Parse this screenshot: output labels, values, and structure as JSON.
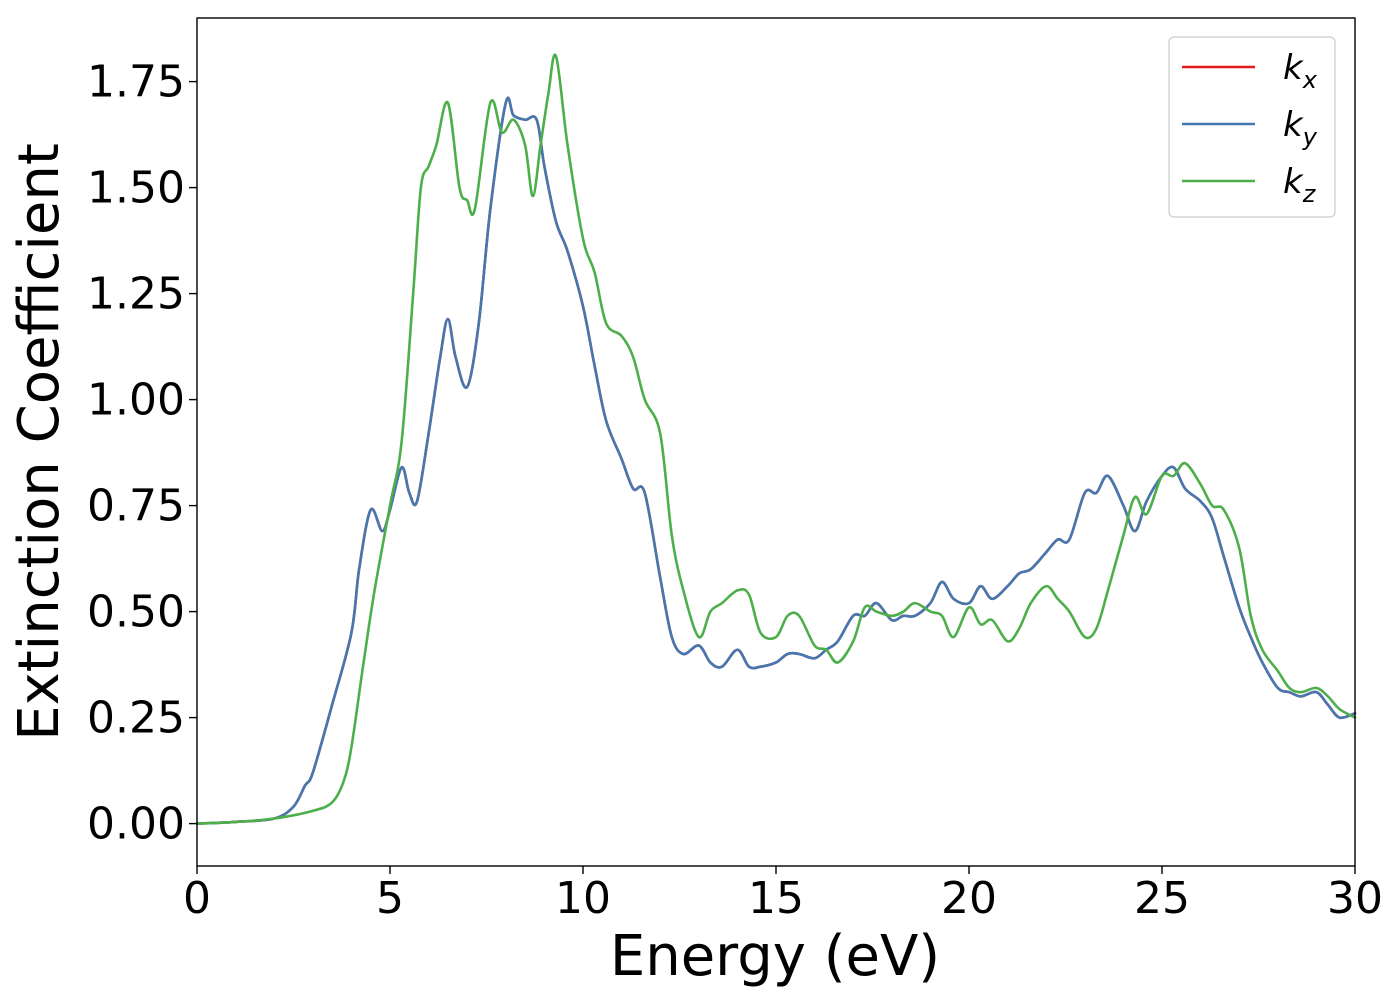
{
  "chart_data": {
    "type": "line",
    "xlabel": "Energy (eV)",
    "ylabel": "Extinction Coefficient",
    "xlim": [
      0,
      30
    ],
    "ylim": [
      -0.1,
      1.9
    ],
    "x_ticks": [
      "0",
      "5",
      "10",
      "15",
      "20",
      "25",
      "30"
    ],
    "y_ticks": [
      "0.00",
      "0.25",
      "0.50",
      "0.75",
      "1.00",
      "1.25",
      "1.50",
      "1.75"
    ],
    "grid": false,
    "legend_position": "top-right",
    "series": [
      {
        "name": "k_x",
        "base": "k",
        "sub": "x",
        "color": "#e41a1c",
        "x": [
          0,
          1,
          2,
          2.5,
          2.8,
          3.0,
          3.5,
          4.0,
          4.2,
          4.5,
          4.8,
          5.0,
          5.3,
          5.5,
          5.7,
          6.0,
          6.3,
          6.5,
          6.7,
          7.0,
          7.3,
          7.6,
          8.0,
          8.2,
          8.5,
          8.8,
          9.0,
          9.3,
          9.6,
          10.0,
          10.3,
          10.6,
          11.0,
          11.3,
          11.6,
          12.0,
          12.3,
          12.6,
          13.0,
          13.3,
          13.6,
          14.0,
          14.3,
          14.6,
          15.0,
          15.3,
          15.6,
          16.0,
          16.3,
          16.6,
          17.0,
          17.3,
          17.6,
          18.0,
          18.3,
          18.6,
          19.0,
          19.3,
          19.6,
          20.0,
          20.3,
          20.6,
          21.0,
          21.3,
          21.6,
          22.0,
          22.3,
          22.6,
          23.0,
          23.3,
          23.6,
          24.0,
          24.3,
          24.6,
          25.0,
          25.3,
          25.6,
          26.0,
          26.3,
          26.6,
          27.0,
          27.3,
          27.6,
          28.0,
          28.3,
          28.6,
          29.0,
          29.3,
          29.6,
          30.0
        ],
        "values": [
          0,
          0.004,
          0.012,
          0.04,
          0.09,
          0.12,
          0.28,
          0.45,
          0.6,
          0.74,
          0.69,
          0.74,
          0.84,
          0.78,
          0.76,
          0.92,
          1.1,
          1.19,
          1.1,
          1.03,
          1.18,
          1.45,
          1.7,
          1.67,
          1.66,
          1.66,
          1.55,
          1.42,
          1.35,
          1.22,
          1.08,
          0.95,
          0.86,
          0.79,
          0.78,
          0.58,
          0.44,
          0.4,
          0.42,
          0.38,
          0.37,
          0.41,
          0.37,
          0.37,
          0.38,
          0.4,
          0.4,
          0.39,
          0.41,
          0.43,
          0.49,
          0.49,
          0.52,
          0.48,
          0.49,
          0.49,
          0.52,
          0.57,
          0.53,
          0.52,
          0.56,
          0.53,
          0.56,
          0.59,
          0.6,
          0.64,
          0.67,
          0.67,
          0.78,
          0.78,
          0.82,
          0.75,
          0.69,
          0.76,
          0.82,
          0.84,
          0.79,
          0.76,
          0.72,
          0.63,
          0.51,
          0.44,
          0.38,
          0.32,
          0.31,
          0.3,
          0.31,
          0.28,
          0.25,
          0.26
        ]
      },
      {
        "name": "k_y",
        "base": "k",
        "sub": "y",
        "color": "#4478b0",
        "x": [
          0,
          1,
          2,
          2.5,
          2.8,
          3.0,
          3.5,
          4.0,
          4.2,
          4.5,
          4.8,
          5.0,
          5.3,
          5.5,
          5.7,
          6.0,
          6.3,
          6.5,
          6.7,
          7.0,
          7.3,
          7.6,
          8.0,
          8.2,
          8.5,
          8.8,
          9.0,
          9.3,
          9.6,
          10.0,
          10.3,
          10.6,
          11.0,
          11.3,
          11.6,
          12.0,
          12.3,
          12.6,
          13.0,
          13.3,
          13.6,
          14.0,
          14.3,
          14.6,
          15.0,
          15.3,
          15.6,
          16.0,
          16.3,
          16.6,
          17.0,
          17.3,
          17.6,
          18.0,
          18.3,
          18.6,
          19.0,
          19.3,
          19.6,
          20.0,
          20.3,
          20.6,
          21.0,
          21.3,
          21.6,
          22.0,
          22.3,
          22.6,
          23.0,
          23.3,
          23.6,
          24.0,
          24.3,
          24.6,
          25.0,
          25.3,
          25.6,
          26.0,
          26.3,
          26.6,
          27.0,
          27.3,
          27.6,
          28.0,
          28.3,
          28.6,
          29.0,
          29.3,
          29.6,
          30.0
        ],
        "values": [
          0,
          0.004,
          0.012,
          0.04,
          0.09,
          0.12,
          0.28,
          0.45,
          0.6,
          0.74,
          0.69,
          0.74,
          0.84,
          0.78,
          0.76,
          0.92,
          1.1,
          1.19,
          1.1,
          1.03,
          1.18,
          1.45,
          1.7,
          1.67,
          1.66,
          1.66,
          1.55,
          1.42,
          1.35,
          1.22,
          1.08,
          0.95,
          0.86,
          0.79,
          0.78,
          0.58,
          0.44,
          0.4,
          0.42,
          0.38,
          0.37,
          0.41,
          0.37,
          0.37,
          0.38,
          0.4,
          0.4,
          0.39,
          0.41,
          0.43,
          0.49,
          0.49,
          0.52,
          0.48,
          0.49,
          0.49,
          0.52,
          0.57,
          0.53,
          0.52,
          0.56,
          0.53,
          0.56,
          0.59,
          0.6,
          0.64,
          0.67,
          0.67,
          0.78,
          0.78,
          0.82,
          0.75,
          0.69,
          0.76,
          0.82,
          0.84,
          0.79,
          0.76,
          0.72,
          0.63,
          0.51,
          0.44,
          0.38,
          0.32,
          0.31,
          0.3,
          0.31,
          0.28,
          0.25,
          0.26
        ]
      },
      {
        "name": "k_z",
        "base": "k",
        "sub": "z",
        "color": "#4daf4a",
        "x": [
          0,
          1,
          2,
          3.0,
          3.5,
          3.8,
          4.0,
          4.3,
          4.6,
          5.0,
          5.3,
          5.6,
          5.8,
          6.0,
          6.2,
          6.5,
          6.8,
          7.0,
          7.2,
          7.6,
          7.9,
          8.2,
          8.5,
          8.7,
          8.9,
          9.1,
          9.3,
          9.6,
          10.0,
          10.3,
          10.6,
          11.0,
          11.3,
          11.6,
          12.0,
          12.3,
          12.6,
          13.0,
          13.3,
          13.6,
          14.0,
          14.3,
          14.6,
          15.0,
          15.3,
          15.6,
          16.0,
          16.3,
          16.6,
          17.0,
          17.3,
          17.6,
          18.0,
          18.3,
          18.6,
          19.0,
          19.3,
          19.6,
          20.0,
          20.3,
          20.6,
          21.0,
          21.3,
          21.6,
          22.0,
          22.3,
          22.6,
          23.0,
          23.3,
          23.6,
          24.0,
          24.3,
          24.6,
          25.0,
          25.3,
          25.6,
          26.0,
          26.3,
          26.6,
          27.0,
          27.3,
          27.6,
          28.0,
          28.3,
          28.6,
          29.0,
          29.3,
          29.6,
          30.0
        ],
        "values": [
          0,
          0.004,
          0.012,
          0.03,
          0.05,
          0.1,
          0.18,
          0.37,
          0.55,
          0.75,
          0.9,
          1.25,
          1.5,
          1.55,
          1.6,
          1.7,
          1.5,
          1.47,
          1.45,
          1.7,
          1.63,
          1.66,
          1.6,
          1.48,
          1.6,
          1.72,
          1.81,
          1.6,
          1.38,
          1.3,
          1.18,
          1.15,
          1.1,
          1.0,
          0.92,
          0.68,
          0.55,
          0.44,
          0.5,
          0.52,
          0.55,
          0.54,
          0.45,
          0.44,
          0.49,
          0.49,
          0.42,
          0.41,
          0.38,
          0.43,
          0.51,
          0.5,
          0.49,
          0.5,
          0.52,
          0.5,
          0.49,
          0.44,
          0.51,
          0.47,
          0.48,
          0.43,
          0.46,
          0.52,
          0.56,
          0.53,
          0.5,
          0.44,
          0.46,
          0.55,
          0.68,
          0.77,
          0.73,
          0.82,
          0.82,
          0.85,
          0.8,
          0.75,
          0.74,
          0.65,
          0.49,
          0.41,
          0.36,
          0.32,
          0.31,
          0.32,
          0.3,
          0.27,
          0.25
        ]
      }
    ]
  }
}
